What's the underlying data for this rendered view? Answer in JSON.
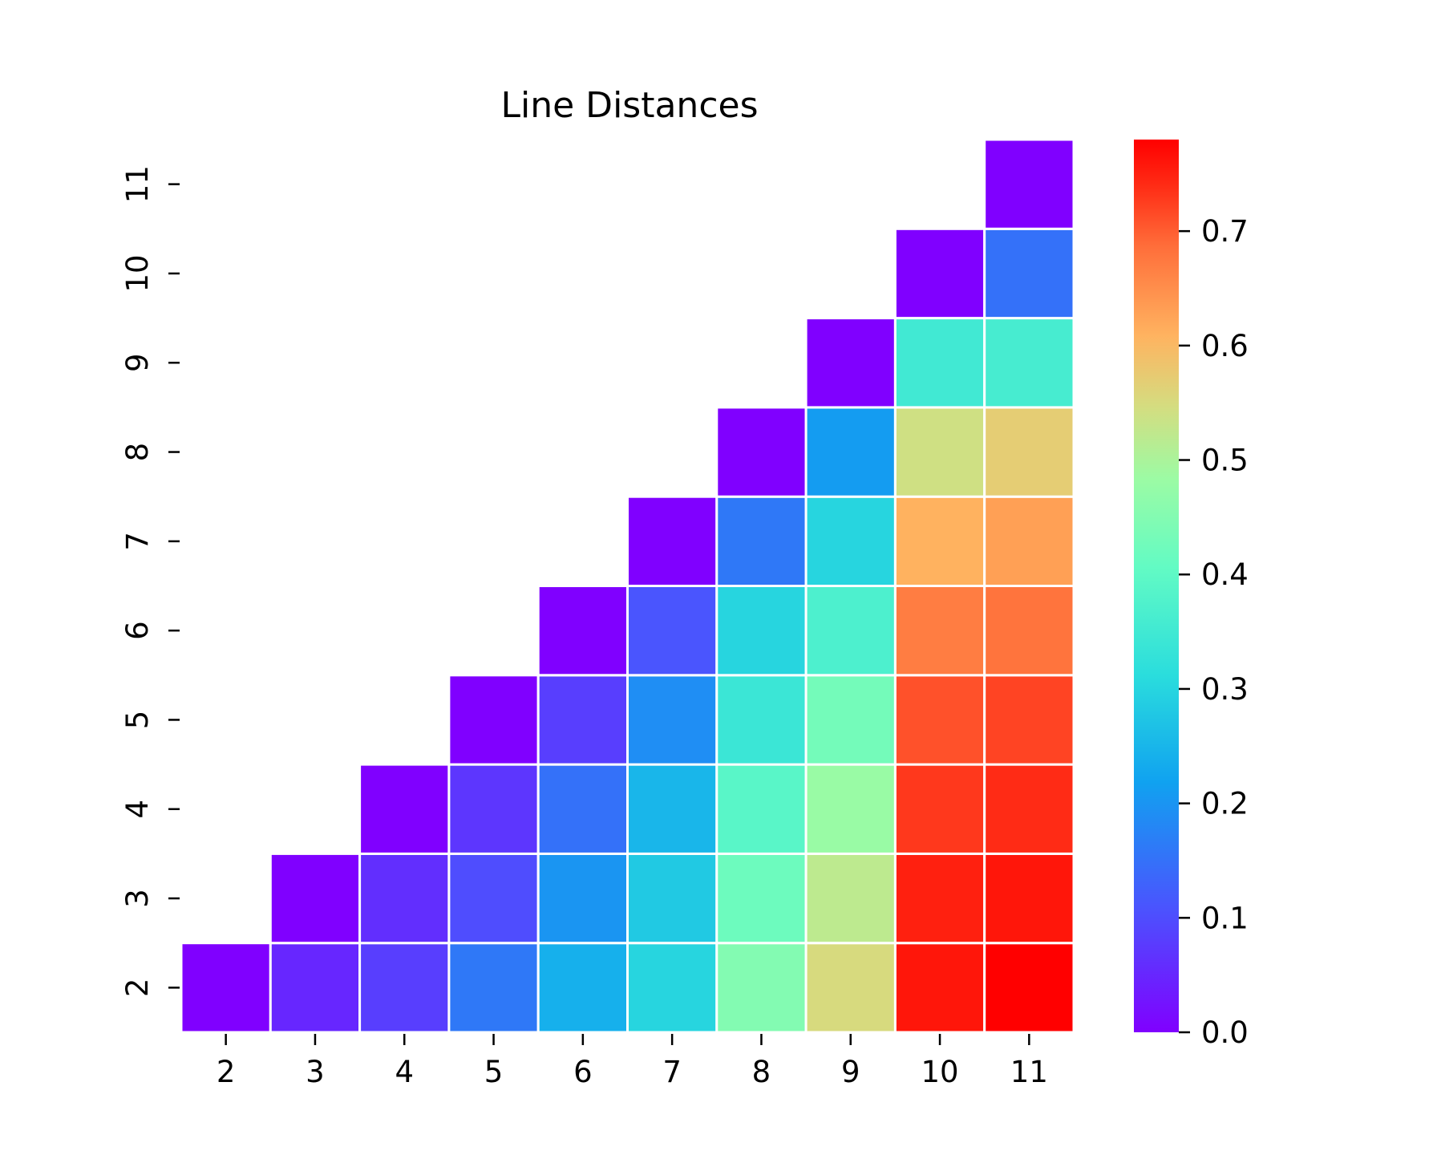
{
  "chart_data": {
    "type": "heatmap",
    "title": "Line Distances",
    "xlabel": "",
    "ylabel": "",
    "x_categories": [
      "2",
      "3",
      "4",
      "5",
      "6",
      "7",
      "8",
      "9",
      "10",
      "11"
    ],
    "y_categories": [
      "2",
      "3",
      "4",
      "5",
      "6",
      "7",
      "8",
      "9",
      "10",
      "11"
    ],
    "colormap": "rainbow",
    "vmin": 0.0,
    "vmax": 0.78,
    "colorbar_ticks": [
      "0.0",
      "0.1",
      "0.2",
      "0.3",
      "0.4",
      "0.5",
      "0.6",
      "0.7"
    ],
    "mask": "lower-triangle (only cells with column >= row shown)",
    "grid": false,
    "values": [
      [
        0.0,
        0.05,
        0.08,
        0.16,
        0.24,
        0.3,
        0.45,
        0.55,
        0.76,
        0.78
      ],
      [
        null,
        0.0,
        0.06,
        0.1,
        0.2,
        0.28,
        0.42,
        0.52,
        0.75,
        0.76
      ],
      [
        null,
        null,
        0.0,
        0.07,
        0.15,
        0.25,
        0.39,
        0.48,
        0.73,
        0.74
      ],
      [
        null,
        null,
        null,
        0.0,
        0.08,
        0.19,
        0.34,
        0.43,
        0.71,
        0.72
      ],
      [
        null,
        null,
        null,
        null,
        0.0,
        0.11,
        0.3,
        0.37,
        0.67,
        0.68
      ],
      [
        null,
        null,
        null,
        null,
        null,
        0.0,
        0.16,
        0.3,
        0.61,
        0.63
      ],
      [
        null,
        null,
        null,
        null,
        null,
        null,
        0.0,
        0.21,
        0.54,
        0.57
      ],
      [
        null,
        null,
        null,
        null,
        null,
        null,
        null,
        0.0,
        0.35,
        0.36
      ],
      [
        null,
        null,
        null,
        null,
        null,
        null,
        null,
        null,
        0.0,
        0.15
      ],
      [
        null,
        null,
        null,
        null,
        null,
        null,
        null,
        null,
        null,
        0.0
      ]
    ]
  }
}
